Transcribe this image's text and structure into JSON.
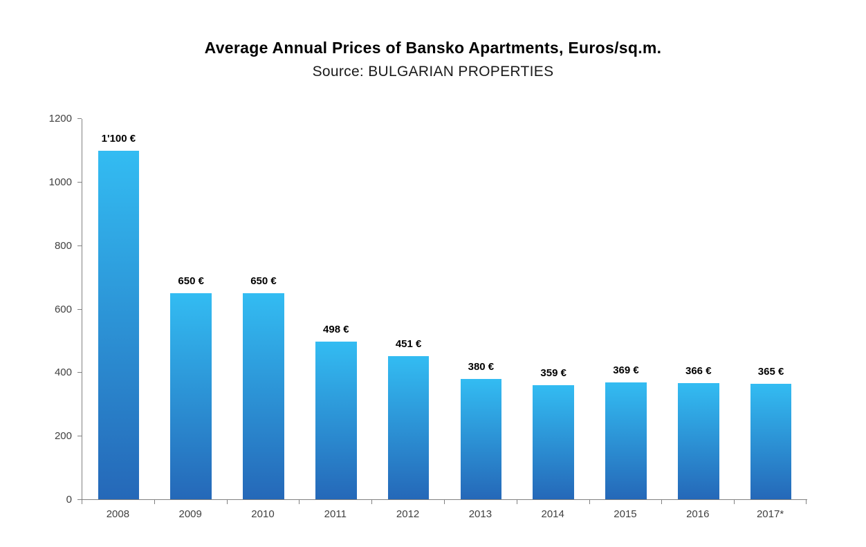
{
  "chart_data": {
    "type": "bar",
    "title": "Average Annual Prices of Bansko Apartments, Euros/sq.m.",
    "subtitle": "Source: BULGARIAN PROPERTIES",
    "categories": [
      "2008",
      "2009",
      "2010",
      "2011",
      "2012",
      "2013",
      "2014",
      "2015",
      "2016",
      "2017*"
    ],
    "values": [
      1100,
      650,
      650,
      498,
      451,
      380,
      359,
      369,
      366,
      365
    ],
    "value_labels": [
      "1'100 €",
      "650 €",
      "650 €",
      "498 €",
      "451 €",
      "380 €",
      "359 €",
      "369 €",
      "366 €",
      "365 €"
    ],
    "xlabel": "",
    "ylabel": "",
    "ylim": [
      0,
      1200
    ],
    "yticks": [
      0,
      200,
      400,
      600,
      800,
      1000,
      1200
    ],
    "grid": false,
    "legend": false,
    "bar_color_top": "#33bcf2",
    "bar_color_bottom": "#2568b8",
    "axis_color": "#808080",
    "currency": "€"
  }
}
